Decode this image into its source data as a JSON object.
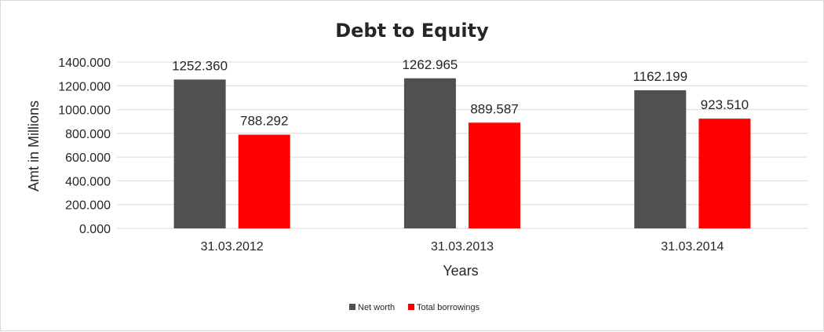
{
  "chart_data": {
    "type": "bar",
    "title": "Debt to Equity",
    "xlabel": "Years",
    "ylabel": "Amt in Millions",
    "categories": [
      "31.03.2012",
      "31.03.2013",
      "31.03.2014"
    ],
    "series": [
      {
        "name": "Net worth",
        "values": [
          1252.36,
          1262.965,
          1162.199
        ],
        "labels": [
          "1252.360",
          "1262.965",
          "1162.199"
        ],
        "color": "#505050"
      },
      {
        "name": "Total borrowings",
        "values": [
          788.292,
          889.587,
          923.51
        ],
        "labels": [
          "788.292",
          "889.587",
          "923.510"
        ],
        "color": "#ff0000"
      }
    ],
    "ylim": [
      0,
      1400
    ],
    "yticks": [
      "0.000",
      "200.000",
      "400.000",
      "600.000",
      "800.000",
      "1000.000",
      "1200.000",
      "1400.000"
    ],
    "grid": true,
    "legend_position": "bottom"
  }
}
